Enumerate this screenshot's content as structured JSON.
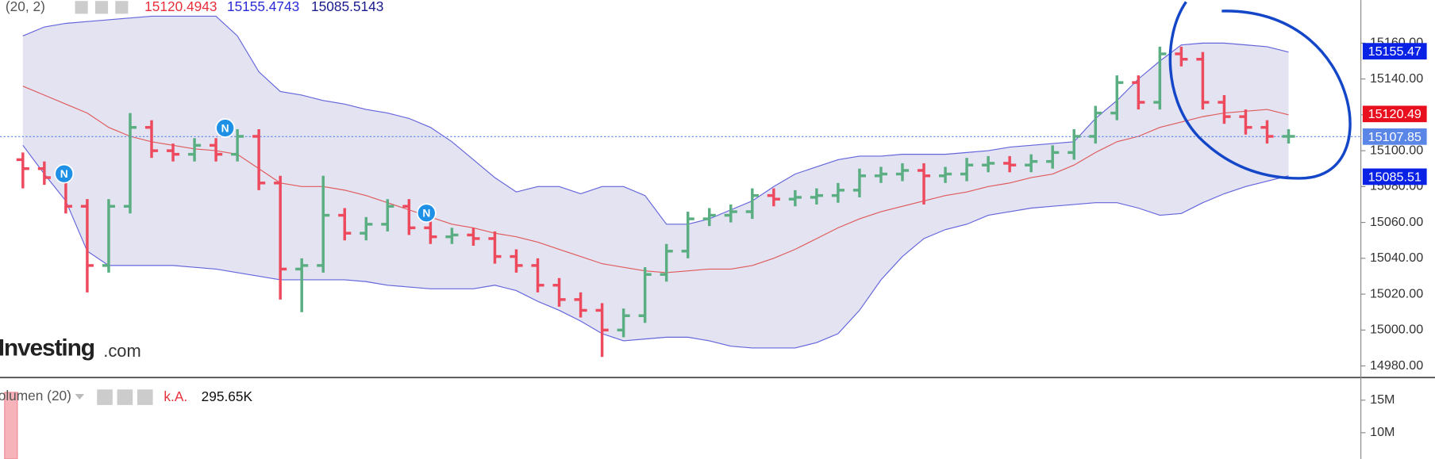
{
  "chart_data": [
    {
      "type": "ohlc",
      "indicator_label": "(20, 2)",
      "indicator_values": [
        {
          "text": "15120.4943",
          "color": "#e8303d"
        },
        {
          "text": "15155.4743",
          "color": "#2b2bd6"
        },
        {
          "text": "15085.5143",
          "color": "#1a1a8c"
        }
      ],
      "watermark": [
        "Investing",
        ".com"
      ],
      "categories": [
        null,
        null,
        null,
        null,
        null,
        null,
        null,
        null,
        null,
        null,
        null,
        null,
        null,
        null,
        null,
        null,
        null,
        null,
        null,
        null,
        null,
        null,
        null,
        null,
        null,
        null,
        null,
        null,
        null,
        null,
        null,
        null,
        null,
        null,
        null,
        null,
        null,
        null,
        null,
        null,
        null,
        null,
        null,
        null,
        null,
        null,
        null,
        null,
        null,
        null,
        null,
        null,
        null,
        null,
        null,
        null,
        null,
        null,
        null,
        null
      ],
      "open": [
        15095,
        15090,
        15085,
        15069,
        15036,
        15069,
        15113,
        15100,
        15098,
        15103,
        15098,
        15108,
        15082,
        15034,
        15036,
        15064,
        15054,
        15059,
        15069,
        15057,
        15052,
        15053,
        15051,
        15041,
        15036,
        15025,
        15017,
        15011,
        15000,
        15008,
        15031,
        15044,
        15062,
        15064,
        15066,
        15075,
        15073,
        15074,
        15075,
        15078,
        15086,
        15087,
        15089,
        15086,
        15087,
        15092,
        15093,
        15092,
        15094,
        15099,
        15108,
        15121,
        15138,
        15127,
        15154,
        15151,
        15127,
        15119,
        15113,
        15108
      ],
      "high": [
        15099,
        15094,
        15089,
        15073,
        15073,
        15121,
        15117,
        15104,
        15107,
        15107,
        15112,
        15112,
        15086,
        15040,
        15086,
        15068,
        15063,
        15073,
        15073,
        15061,
        15057,
        15057,
        15055,
        15045,
        15040,
        15029,
        15021,
        15015,
        15012,
        15035,
        15048,
        15066,
        15068,
        15070,
        15079,
        15079,
        15078,
        15079,
        15082,
        15090,
        15091,
        15093,
        15093,
        15091,
        15096,
        15097,
        15097,
        15098,
        15103,
        15112,
        15125,
        15142,
        15142,
        15158,
        15158,
        15155,
        15131,
        15123,
        15117,
        15112
      ],
      "low": [
        15079,
        15081,
        15065,
        15021,
        15032,
        15065,
        15096,
        15094,
        15094,
        15094,
        15094,
        15078,
        15017,
        15010,
        15032,
        15050,
        15050,
        15055,
        15053,
        15048,
        15048,
        15047,
        15037,
        15032,
        15021,
        15013,
        15007,
        14985,
        14996,
        15004,
        15027,
        15040,
        15058,
        15060,
        15062,
        15069,
        15069,
        15070,
        15071,
        15074,
        15082,
        15083,
        15070,
        15082,
        15083,
        15088,
        15088,
        15088,
        15090,
        15095,
        15104,
        15117,
        15123,
        15123,
        15147,
        15123,
        15115,
        15109,
        15104,
        15104
      ],
      "close": [
        15090,
        15085,
        15069,
        15036,
        15069,
        15113,
        15100,
        15098,
        15103,
        15098,
        15108,
        15082,
        15034,
        15036,
        15064,
        15054,
        15059,
        15069,
        15057,
        15052,
        15053,
        15051,
        15041,
        15036,
        15025,
        15017,
        15011,
        15000,
        15008,
        15031,
        15044,
        15062,
        15064,
        15066,
        15075,
        15073,
        15074,
        15075,
        15078,
        15086,
        15087,
        15089,
        15086,
        15087,
        15092,
        15093,
        15092,
        15094,
        15099,
        15108,
        15121,
        15138,
        15127,
        15154,
        15151,
        15127,
        15119,
        15113,
        15108,
        15108
      ],
      "up_color": "#5aae82",
      "down_color": "#ee4a5e",
      "bands": {
        "upper": [
          15164,
          15169,
          15171,
          15172,
          15173,
          15174,
          15175,
          15175,
          15175,
          15175,
          15164,
          15144,
          15133,
          15131,
          15128,
          15126,
          15123,
          15121,
          15118,
          15113,
          15105,
          15095,
          15085,
          15077,
          15080,
          15080,
          15076,
          15080,
          15080,
          15075,
          15059,
          15059,
          15062,
          15067,
          15072,
          15080,
          15087,
          15091,
          15095,
          15097,
          15097,
          15098,
          15098,
          15098,
          15099,
          15100,
          15102,
          15103,
          15104,
          15105,
          15118,
          15128,
          15140,
          15150,
          15159,
          15160,
          15160,
          15159,
          15158,
          15155
        ],
        "middle": [
          15136,
          15131,
          15126,
          15121,
          15113,
          15108,
          15105,
          15103,
          15101,
          15100,
          15098,
          15090,
          15082,
          15080,
          15080,
          15078,
          15075,
          15071,
          15067,
          15063,
          15059,
          15057,
          15054,
          15052,
          15049,
          15045,
          15041,
          15037,
          15035,
          15033,
          15032,
          15033,
          15034,
          15034,
          15036,
          15040,
          15045,
          15051,
          15057,
          15062,
          15066,
          15069,
          15072,
          15075,
          15077,
          15080,
          15082,
          15085,
          15087,
          15092,
          15099,
          15105,
          15108,
          15113,
          15116,
          15119,
          15121,
          15122,
          15123,
          15120
        ],
        "lower": [
          15103,
          15087,
          15072,
          15044,
          15036,
          15036,
          15036,
          15036,
          15035,
          15034,
          15032,
          15030,
          15028,
          15028,
          15028,
          15028,
          15027,
          15025,
          15024,
          15023,
          15023,
          15023,
          15025,
          15022,
          15016,
          15011,
          15005,
          14998,
          14994,
          14995,
          14996,
          14996,
          14994,
          14991,
          14990,
          14990,
          14990,
          14993,
          14998,
          15011,
          15028,
          15041,
          15051,
          15056,
          15059,
          15064,
          15066,
          15068,
          15069,
          15070,
          15071,
          15071,
          15068,
          15064,
          15065,
          15071,
          15076,
          15080,
          15083,
          15086
        ],
        "band_color": "#6464dc",
        "middle_color": "#e05a5a",
        "fill": "#e3e3f2"
      },
      "ylim": [
        14974,
        15184
      ],
      "yticks": [
        {
          "value": 14980,
          "label": "14980.00"
        },
        {
          "value": 15000,
          "label": "15000.00"
        },
        {
          "value": 15020,
          "label": "15020.00"
        },
        {
          "value": 15040,
          "label": "15040.00"
        },
        {
          "value": 15060,
          "label": "15060.00"
        },
        {
          "value": 15080,
          "label": "15080.00"
        },
        {
          "value": 15100,
          "label": "15100.00"
        },
        {
          "value": 15120,
          "label": "15120.00"
        },
        {
          "value": 15140,
          "label": "15140.00"
        },
        {
          "value": 15160,
          "label": "15160.00"
        }
      ],
      "price_tags": [
        15155.47,
        15120.49,
        15107.85,
        15085.51
      ],
      "price_tag_colors": [
        "#0a22e6",
        "#e8101e",
        "#5a86e8",
        "#0a22e6"
      ],
      "news_markers": [
        "N",
        "N",
        "N"
      ]
    },
    {
      "type": "volume",
      "title": "olumen (20)",
      "status": "k.A.",
      "last_value": "295.65K",
      "categories": [
        null
      ],
      "values": [
        16200000
      ],
      "color": "#f6b3ba",
      "ylim": [
        5970000,
        18330000
      ],
      "yticks": [
        {
          "value": 15000000,
          "label": "15M"
        },
        {
          "value": 10000000,
          "label": "10M"
        }
      ]
    }
  ]
}
